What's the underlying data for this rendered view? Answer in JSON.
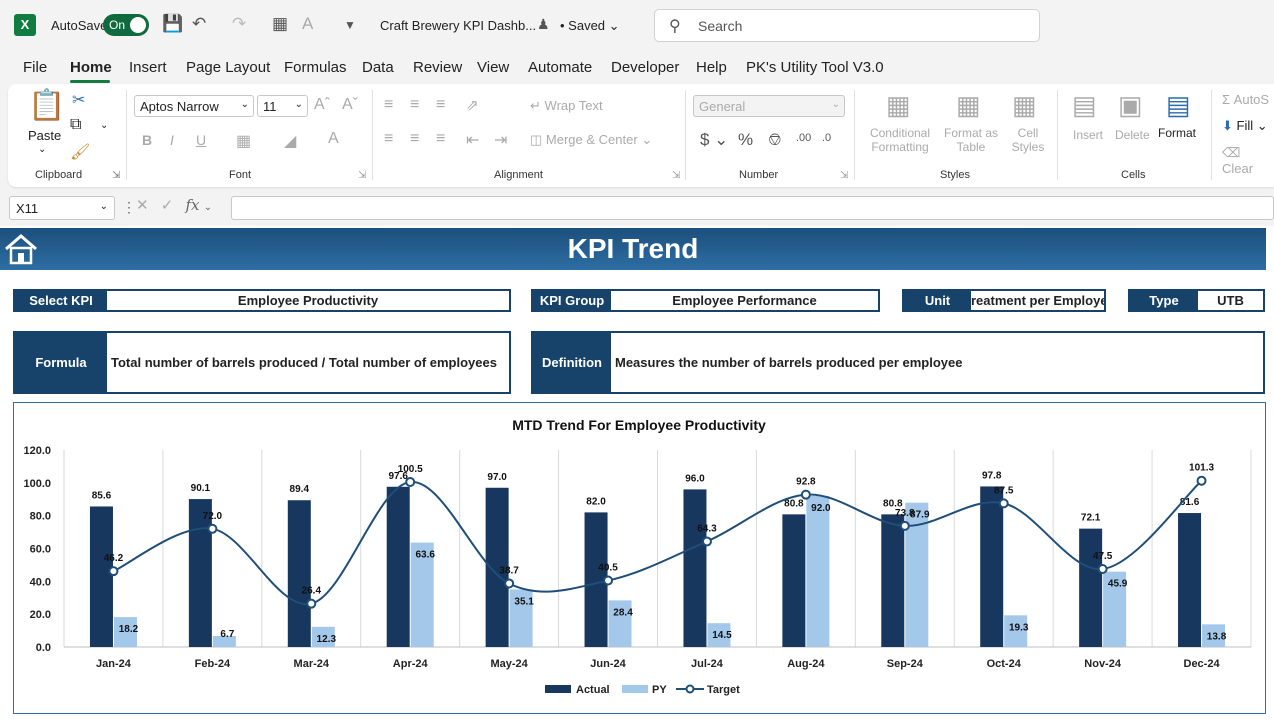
{
  "titlebar": {
    "app_icon": "excel-icon",
    "autosave_label": "AutoSave",
    "autosave_state": "On",
    "doc_title": "Craft Brewery KPI Dashb...",
    "saved_label": "• Saved",
    "search_placeholder": "Search"
  },
  "menu": [
    "File",
    "Home",
    "Insert",
    "Page Layout",
    "Formulas",
    "Data",
    "Review",
    "View",
    "Automate",
    "Developer",
    "Help",
    "PK's Utility Tool V3.0"
  ],
  "menu_active": "Home",
  "ribbon": {
    "clipboard": {
      "paste": "Paste",
      "label": "Clipboard"
    },
    "font": {
      "family": "Aptos Narrow",
      "size": "11",
      "label": "Font"
    },
    "alignment": {
      "wrap": "Wrap Text",
      "merge": "Merge & Center",
      "label": "Alignment"
    },
    "number": {
      "format": "General",
      "label": "Number"
    },
    "styles": {
      "conditional": "Conditional",
      "formatting": "Formatting",
      "format_as": "Format as",
      "table": "Table",
      "cell": "Cell",
      "styles_word": "Styles",
      "label": "Styles"
    },
    "cells": {
      "insert": "Insert",
      "delete": "Delete",
      "format": "Format",
      "label": "Cells"
    },
    "editing": {
      "autosum": "AutoS",
      "fill": "Fill",
      "clear": "Clear"
    }
  },
  "formula_bar": {
    "name_box": "X11",
    "fx": "fx",
    "value": ""
  },
  "dashboard": {
    "title": "KPI Trend",
    "select_kpi_label": "Select KPI",
    "select_kpi_value": "Employee Productivity",
    "kpi_group_label": "KPI Group",
    "kpi_group_value": "Employee Performance",
    "unit_label": "Unit",
    "unit_value": "reatment per Employe",
    "type_label": "Type",
    "type_value": "UTB",
    "formula_label": "Formula",
    "formula_value": "Total number of barrels produced / Total number of employees",
    "definition_label": "Definition",
    "definition_value": "Measures the number of barrels produced per employee"
  },
  "colors": {
    "actual": "#17375e",
    "py": "#a4c8ea",
    "target": "#1f4e79",
    "banner": "#1c4f7c"
  },
  "chart_data": {
    "type": "bar",
    "title": "MTD Trend For Employee Productivity",
    "categories": [
      "Jan-24",
      "Feb-24",
      "Mar-24",
      "Apr-24",
      "May-24",
      "Jun-24",
      "Jul-24",
      "Aug-24",
      "Sep-24",
      "Oct-24",
      "Nov-24",
      "Dec-24"
    ],
    "series": [
      {
        "name": "Actual",
        "kind": "bar",
        "values": [
          85.6,
          90.1,
          89.4,
          97.6,
          97.0,
          82.0,
          96.0,
          80.8,
          80.8,
          97.8,
          72.1,
          81.6
        ]
      },
      {
        "name": "PY",
        "kind": "bar",
        "values": [
          18.2,
          6.7,
          12.3,
          63.6,
          35.1,
          28.4,
          14.5,
          92.0,
          87.9,
          19.3,
          45.9,
          13.8
        ]
      },
      {
        "name": "Target",
        "kind": "line",
        "values": [
          46.2,
          72.0,
          26.4,
          100.5,
          38.7,
          40.5,
          64.3,
          92.8,
          73.8,
          87.5,
          47.5,
          101.3
        ]
      }
    ],
    "y_ticks": [
      "0.0",
      "20.0",
      "40.0",
      "60.0",
      "80.0",
      "100.0",
      "120.0"
    ],
    "ylim": [
      0,
      120
    ],
    "grid": "vertical",
    "legend": "bottom"
  }
}
